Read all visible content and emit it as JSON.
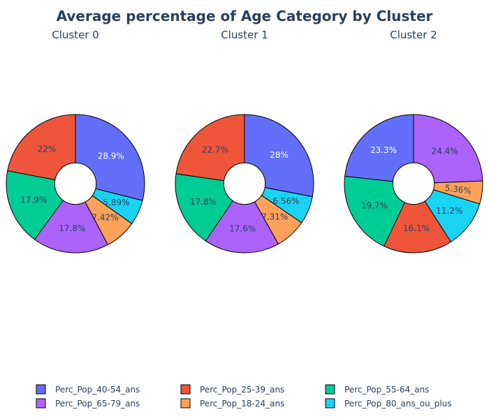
{
  "chart_data": {
    "type": "pie",
    "title": "Average percentage of Age Category by Cluster",
    "hole": true,
    "colors": {
      "Perc_Pop_40-54_ans": "#636efa",
      "Perc_Pop_25-39_ans": "#ef553b",
      "Perc_Pop_55-64_ans": "#00cc96",
      "Perc_Pop_65-79_ans": "#ab63fa",
      "Perc_Pop_18-24_ans": "#ffa15a",
      "Perc_Pop_80_ans_ou_plus": "#19d3f3"
    },
    "legend": {
      "placement": "bottom",
      "entries": [
        "Perc_Pop_40-54_ans",
        "Perc_Pop_25-39_ans",
        "Perc_Pop_55-64_ans",
        "Perc_Pop_65-79_ans",
        "Perc_Pop_18-24_ans",
        "Perc_Pop_80_ans_ou_plus"
      ]
    },
    "pies": [
      {
        "subtitle": "Cluster 0",
        "slices": [
          {
            "category": "Perc_Pop_40-54_ans",
            "value": 28.9,
            "label": "28.9%"
          },
          {
            "category": "Perc_Pop_80_ans_ou_plus",
            "value": 5.89,
            "label": "5.89%"
          },
          {
            "category": "Perc_Pop_18-24_ans",
            "value": 7.42,
            "label": "7.42%"
          },
          {
            "category": "Perc_Pop_65-79_ans",
            "value": 17.8,
            "label": "17.8%"
          },
          {
            "category": "Perc_Pop_55-64_ans",
            "value": 17.9,
            "label": "17.9%"
          },
          {
            "category": "Perc_Pop_25-39_ans",
            "value": 22,
            "label": "22%"
          }
        ]
      },
      {
        "subtitle": "Cluster 1",
        "slices": [
          {
            "category": "Perc_Pop_40-54_ans",
            "value": 28,
            "label": "28%"
          },
          {
            "category": "Perc_Pop_80_ans_ou_plus",
            "value": 6.56,
            "label": "6.56%"
          },
          {
            "category": "Perc_Pop_18-24_ans",
            "value": 7.31,
            "label": "7.31%"
          },
          {
            "category": "Perc_Pop_65-79_ans",
            "value": 17.6,
            "label": "17.6%"
          },
          {
            "category": "Perc_Pop_55-64_ans",
            "value": 17.8,
            "label": "17.8%"
          },
          {
            "category": "Perc_Pop_25-39_ans",
            "value": 22.7,
            "label": "22.7%"
          }
        ]
      },
      {
        "subtitle": "Cluster 2",
        "slices": [
          {
            "category": "Perc_Pop_65-79_ans",
            "value": 24.4,
            "label": "24.4%"
          },
          {
            "category": "Perc_Pop_18-24_ans",
            "value": 5.36,
            "label": "5.36%"
          },
          {
            "category": "Perc_Pop_80_ans_ou_plus",
            "value": 11.2,
            "label": "11.2%"
          },
          {
            "category": "Perc_Pop_25-39_ans",
            "value": 16.1,
            "label": "16.1%"
          },
          {
            "category": "Perc_Pop_55-64_ans",
            "value": 19.7,
            "label": "19.7%"
          },
          {
            "category": "Perc_Pop_40-54_ans",
            "value": 23.3,
            "label": "23.3%"
          }
        ]
      }
    ]
  }
}
